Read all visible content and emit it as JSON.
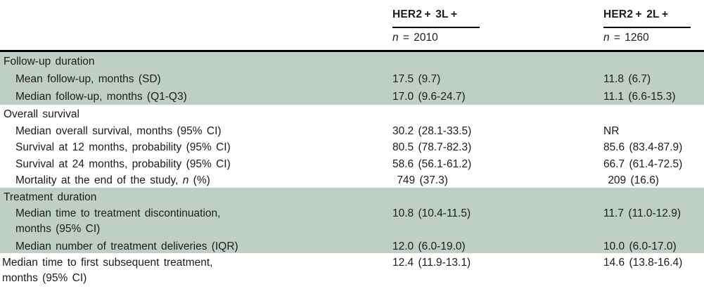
{
  "colors": {
    "shade_green": "#bfcfc3",
    "rule_black": "#000000",
    "text": "#1b1b1b"
  },
  "header": {
    "col1": {
      "title": "HER2 + 3L +",
      "n_italic": "n",
      "n_rest": " = 2010"
    },
    "col2": {
      "title": "HER2 + 2L +",
      "n_italic": "n",
      "n_rest": " = 1260"
    }
  },
  "rows": [
    {
      "label": "Follow-up duration",
      "v1": "",
      "v2": ""
    },
    {
      "label": "Mean follow-up, months (SD)",
      "v1": "17.5 (9.7)",
      "v2": "11.8 (6.7)"
    },
    {
      "label": "Median follow-up, months (Q1-Q3)",
      "v1": "17.0 (9.6-24.7)",
      "v2": "11.1 (6.6-15.3)"
    },
    {
      "label": "Overall survival",
      "v1": "",
      "v2": ""
    },
    {
      "label": "Median overall survival, months (95% CI)",
      "v1": "30.2 (28.1-33.5)",
      "v2": "NR"
    },
    {
      "label": "Survival at 12 months, probability (95% CI)",
      "v1": "80.5 (78.7-82.3)",
      "v2": "85.6 (83.4-87.9)"
    },
    {
      "label": "Survival at 24 months, probability (95% CI)",
      "v1": "58.6 (56.1-61.2)",
      "v2": "66.7 (61.4-72.5)"
    },
    {
      "label_pre": "Mortality at the end of the study, ",
      "label_it": "n",
      "label_post": " (%)",
      "v1": " 749 (37.3)",
      "v2": " 209 (16.6)"
    },
    {
      "label": "Treatment duration",
      "v1": "",
      "v2": ""
    },
    {
      "label": "Median time to treatment discontinuation,",
      "label2": "months (95% CI)",
      "v1": "10.8 (10.4-11.5)",
      "v2": "11.7 (11.0-12.9)"
    },
    {
      "label": "Median number of treatment deliveries (IQR)",
      "v1": "12.0 (6.0-19.0)",
      "v2": "10.0 (6.0-17.0)"
    },
    {
      "label": "Median time to first subsequent treatment,",
      "label2": "months (95% CI)",
      "v1": "12.4 (11.9-13.1)",
      "v2": "14.6 (13.8-16.4)"
    }
  ]
}
